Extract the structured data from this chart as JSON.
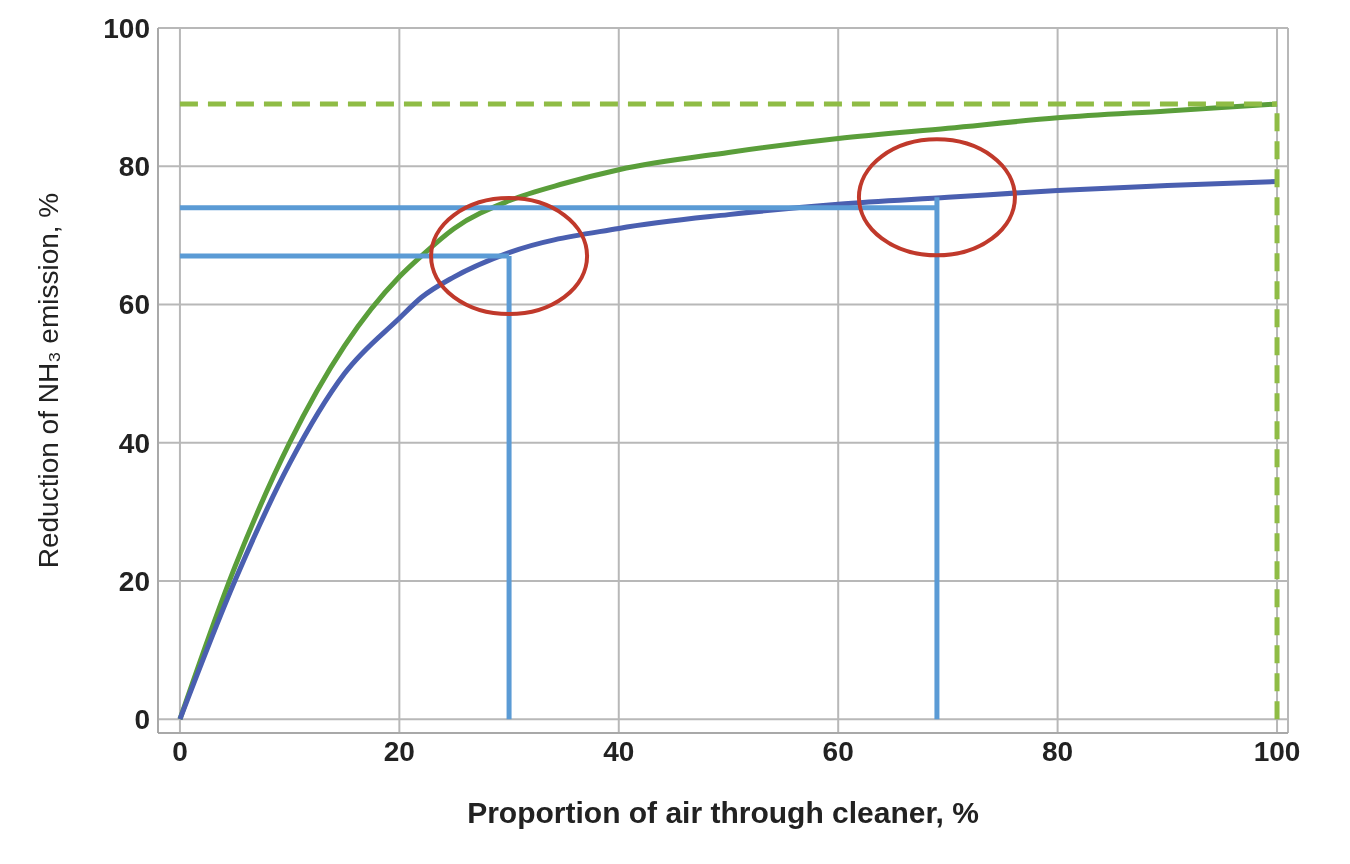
{
  "chart_data": {
    "type": "line",
    "xlabel": "Proportion of air through cleaner, %",
    "ylabel": "Reduction of NH₃ emission, %",
    "xlim": [
      -2,
      101
    ],
    "ylim": [
      -2,
      100
    ],
    "xticks": [
      0,
      20,
      40,
      60,
      80,
      100
    ],
    "yticks": [
      0,
      20,
      40,
      60,
      80,
      100
    ],
    "grid": true,
    "marker": "none",
    "line_style": "solid",
    "series": [
      {
        "color": "#5a9e3a",
        "x": [
          0,
          5,
          10,
          15,
          20,
          22,
          25,
          30,
          35,
          40,
          50,
          60,
          70,
          80,
          90,
          100
        ],
        "values": [
          0,
          22,
          40,
          54,
          64,
          67,
          71,
          75,
          77.5,
          79.5,
          82,
          84,
          85.5,
          87,
          88,
          89
        ]
      },
      {
        "color": "#4a5fb0",
        "x": [
          0,
          5,
          10,
          15,
          20,
          22,
          25,
          30,
          40,
          50,
          60,
          70,
          80,
          90,
          100
        ],
        "values": [
          0,
          20,
          37,
          50,
          58,
          61,
          64,
          67.5,
          71,
          73,
          74.5,
          75.5,
          76.5,
          77.2,
          77.8
        ]
      },
      {
        "color": "#5b9bd5",
        "x": [
          0,
          30
        ],
        "values": [
          67,
          67
        ]
      },
      {
        "color": "#5b9bd5",
        "x": [
          30,
          30
        ],
        "values": [
          0,
          67
        ]
      },
      {
        "color": "#5b9bd5",
        "x": [
          0,
          69
        ],
        "values": [
          74,
          74
        ]
      },
      {
        "color": "#5b9bd5",
        "x": [
          69,
          69
        ],
        "values": [
          0,
          75.5
        ]
      },
      {
        "color": "#8fbc45",
        "x": [
          0,
          100
        ],
        "values": [
          89,
          89
        ],
        "line_style": "dashed"
      },
      {
        "color": "#8fbc45",
        "x": [
          100,
          100
        ],
        "values": [
          0,
          89
        ],
        "line_style": "dashed"
      }
    ]
  }
}
